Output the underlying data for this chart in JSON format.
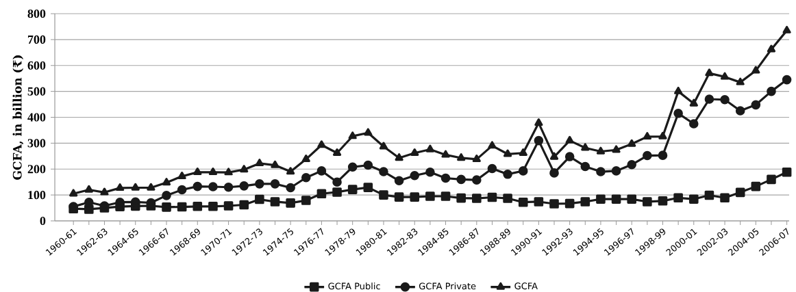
{
  "chart_data": {
    "type": "line",
    "ylabel": "GCFA, in billion (₹)",
    "categories": [
      "1960-61",
      null,
      "1962-63",
      null,
      "1964-65",
      null,
      "1966-67",
      null,
      "1968-69",
      null,
      "1970-71",
      null,
      "1972-73",
      null,
      "1974-75",
      null,
      "1976-77",
      null,
      "1978-79",
      null,
      "1980-81",
      null,
      "1982-83",
      null,
      "1984-85",
      null,
      "1986-87",
      null,
      "1988-89",
      null,
      "1990-91",
      null,
      "1992-93",
      null,
      "1994-95",
      null,
      "1996-97",
      null,
      "1998-99",
      null,
      "2000-01",
      null,
      "2002-03",
      null,
      "2004-05",
      null,
      "2006-07"
    ],
    "series": [
      {
        "name": "GCFA Public",
        "color": "#1a1a1a",
        "marker": "square",
        "values": [
          47,
          45,
          50,
          55,
          57,
          58,
          53,
          54,
          56,
          56,
          58,
          62,
          83,
          74,
          69,
          79,
          105,
          111,
          121,
          129,
          100,
          92,
          92,
          95,
          95,
          88,
          87,
          91,
          87,
          72,
          74,
          66,
          67,
          74,
          84,
          84,
          84,
          74,
          77,
          89,
          84,
          99,
          89,
          110,
          133,
          160,
          188
        ]
      },
      {
        "name": "GCFA Private",
        "color": "#1a1a1a",
        "marker": "circle",
        "values": [
          55,
          72,
          58,
          72,
          73,
          70,
          98,
          120,
          133,
          132,
          130,
          135,
          143,
          143,
          128,
          167,
          193,
          150,
          208,
          215,
          190,
          155,
          175,
          188,
          165,
          160,
          158,
          202,
          180,
          193,
          310,
          185,
          248,
          210,
          190,
          193,
          217,
          252,
          253,
          415,
          375,
          470,
          468,
          425,
          448,
          500,
          545
        ]
      },
      {
        "name": "GCFA",
        "color": "#1a1a1a",
        "marker": "triangle",
        "values": [
          105,
          120,
          110,
          127,
          128,
          128,
          148,
          172,
          188,
          188,
          187,
          198,
          222,
          215,
          190,
          238,
          293,
          262,
          327,
          340,
          287,
          243,
          262,
          276,
          255,
          243,
          238,
          290,
          258,
          262,
          378,
          247,
          310,
          282,
          268,
          274,
          297,
          325,
          326,
          500,
          453,
          570,
          556,
          535,
          580,
          662,
          735
        ]
      }
    ],
    "ylim": [
      0,
      800
    ],
    "yticks": [
      0,
      100,
      200,
      300,
      400,
      500,
      600,
      700,
      800
    ],
    "grid": "y",
    "legend": "bottom",
    "line_style": "solid"
  }
}
